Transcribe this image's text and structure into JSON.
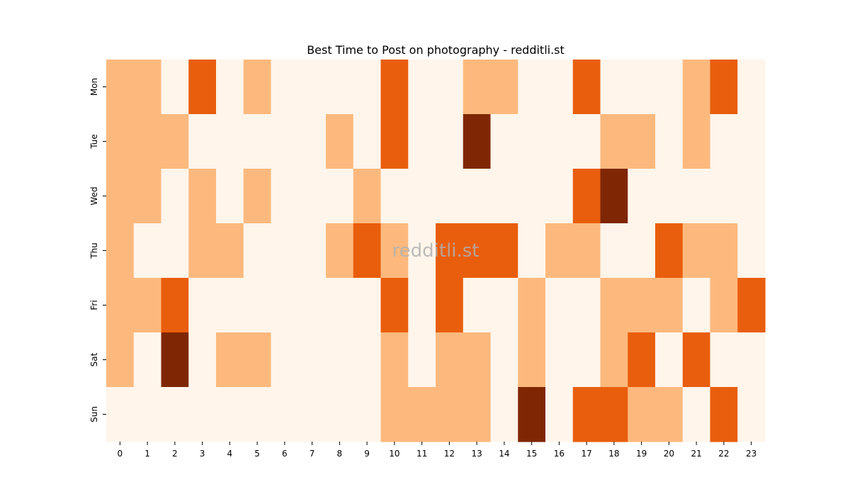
{
  "chart_data": {
    "type": "heatmap",
    "title": "Best Time to Post on photography - redditli.st",
    "watermark": "redditli.st",
    "xlabel": "",
    "ylabel": "",
    "x_categories": [
      "0",
      "1",
      "2",
      "3",
      "4",
      "5",
      "6",
      "7",
      "8",
      "9",
      "10",
      "11",
      "12",
      "13",
      "14",
      "15",
      "16",
      "17",
      "18",
      "19",
      "20",
      "21",
      "22",
      "23"
    ],
    "y_categories": [
      "Mon",
      "Tue",
      "Wed",
      "Thu",
      "Fri",
      "Sat",
      "Sun"
    ],
    "values": [
      [
        1,
        1,
        0,
        2,
        0,
        1,
        0,
        0,
        0,
        0,
        2,
        0,
        0,
        1,
        1,
        0,
        0,
        2,
        0,
        0,
        0,
        1,
        2,
        0
      ],
      [
        1,
        1,
        1,
        0,
        0,
        0,
        0,
        0,
        1,
        0,
        2,
        0,
        0,
        3,
        0,
        0,
        0,
        0,
        1,
        1,
        0,
        1,
        0,
        0
      ],
      [
        1,
        1,
        0,
        1,
        0,
        1,
        0,
        0,
        0,
        1,
        0,
        0,
        0,
        0,
        0,
        0,
        0,
        2,
        3,
        0,
        0,
        0,
        0,
        0
      ],
      [
        1,
        0,
        0,
        1,
        1,
        0,
        0,
        0,
        1,
        2,
        1,
        0,
        2,
        2,
        2,
        0,
        1,
        1,
        0,
        0,
        2,
        1,
        1,
        0
      ],
      [
        1,
        1,
        2,
        0,
        0,
        0,
        0,
        0,
        0,
        0,
        2,
        0,
        2,
        0,
        0,
        1,
        0,
        0,
        1,
        1,
        1,
        0,
        1,
        2
      ],
      [
        1,
        0,
        3,
        0,
        1,
        1,
        0,
        0,
        0,
        0,
        1,
        0,
        1,
        1,
        0,
        1,
        0,
        0,
        1,
        2,
        0,
        2,
        0,
        0
      ],
      [
        0,
        0,
        0,
        0,
        0,
        0,
        0,
        0,
        0,
        0,
        1,
        1,
        1,
        1,
        0,
        3,
        0,
        2,
        2,
        1,
        1,
        0,
        2,
        0
      ]
    ],
    "colormap": "Oranges",
    "color_levels": [
      "#fff5eb",
      "#fdb97d",
      "#e95e0d",
      "#7f2704"
    ],
    "colorbar": false,
    "grid": false,
    "legend": "none"
  }
}
